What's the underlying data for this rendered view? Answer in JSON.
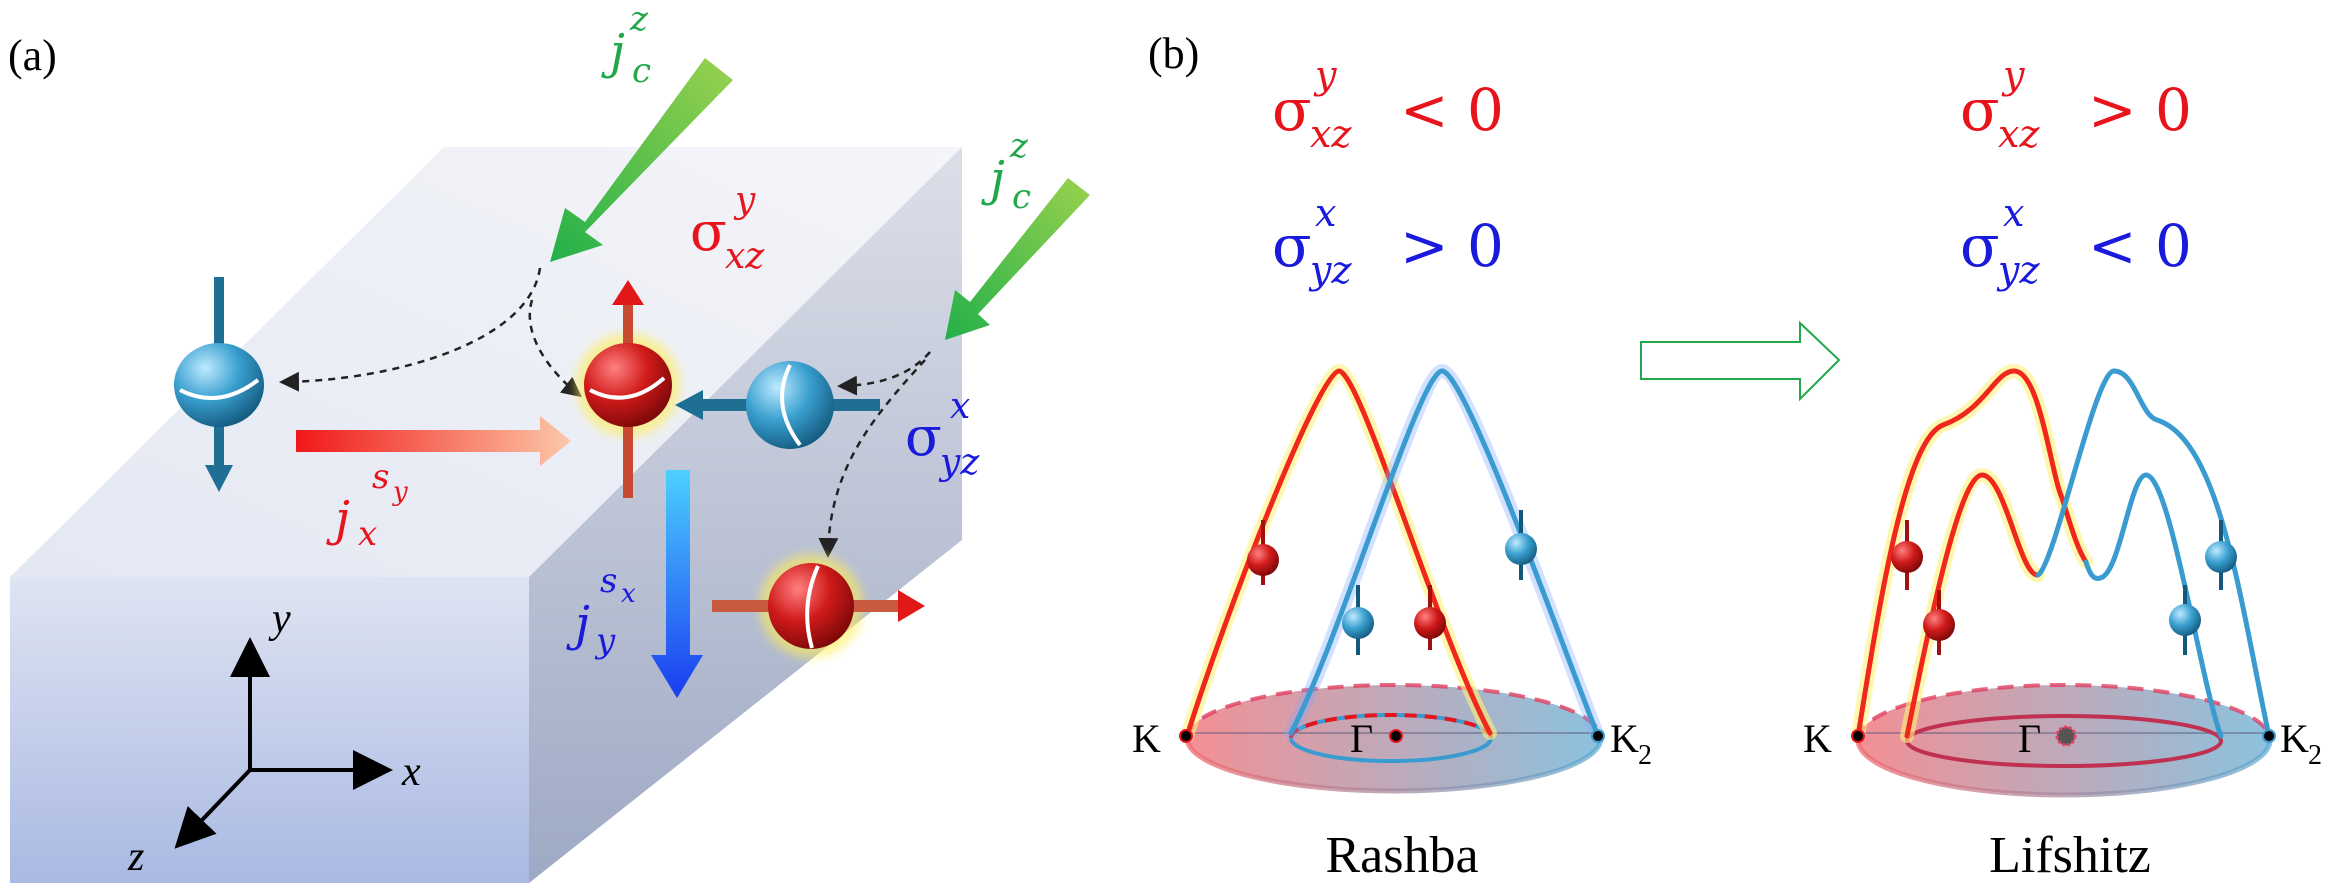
{
  "colors": {
    "red": "#e8141c",
    "blue": "#1a1adc",
    "green": "#22a84a",
    "spin_red": "#c8141c",
    "spin_blue": "#2a8fc0"
  },
  "panel_a": {
    "label": "(a)",
    "charge_current_1": {
      "base": "j",
      "sup": "z",
      "sub": "c"
    },
    "charge_current_2": {
      "base": "j",
      "sup": "z",
      "sub": "c"
    },
    "spin_hall_y": {
      "base": "σ",
      "sup": "y",
      "sub": "xz"
    },
    "spin_hall_x": {
      "base": "σ",
      "sup": "x",
      "sub": "yz"
    },
    "spin_current_x": {
      "base": "j",
      "sup": "s",
      "sup_sub": "y",
      "sub": "x"
    },
    "spin_current_y": {
      "base": "j",
      "sup": "s",
      "sup_sub": "x",
      "sub": "y"
    },
    "axes": {
      "x": "x",
      "y": "y",
      "z": "z"
    }
  },
  "panel_b": {
    "label": "(b)",
    "rashba": {
      "name": "Rashba",
      "cond_y": {
        "base": "σ",
        "sup": "y",
        "sub": "xz",
        "rel": "< 0"
      },
      "cond_x": {
        "base": "σ",
        "sup": "x",
        "sub": "yz",
        "rel": "> 0"
      },
      "points": {
        "k": "K",
        "gamma": "Γ",
        "k2": "K",
        "k2_sub": "2"
      }
    },
    "lifshitz": {
      "name": "Lifshitz",
      "cond_y": {
        "base": "σ",
        "sup": "y",
        "sub": "xz",
        "rel": "> 0"
      },
      "cond_x": {
        "base": "σ",
        "sup": "x",
        "sub": "yz",
        "rel": "< 0"
      },
      "points": {
        "k": "K",
        "gamma": "Γ",
        "k2": "K",
        "k2_sub": "2"
      }
    },
    "transition_arrow": "hollow-right-arrow"
  }
}
